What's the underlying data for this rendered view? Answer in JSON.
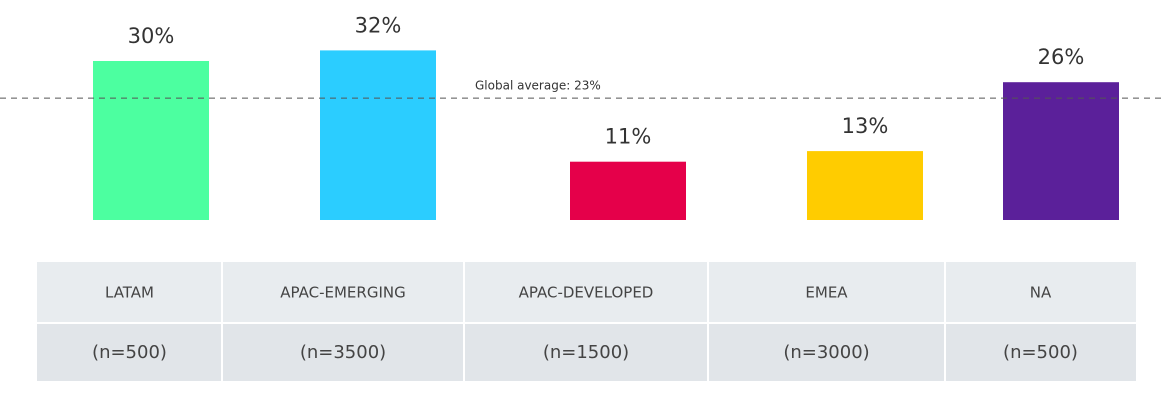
{
  "chart_data": {
    "type": "bar",
    "categories": [
      "LATAM",
      "APAC-EMERGING",
      "APAC-DEVELOPED",
      "EMEA",
      "NA"
    ],
    "values": [
      30,
      32,
      11,
      13,
      26
    ],
    "value_labels": [
      "30%",
      "32%",
      "11%",
      "13%",
      "26%"
    ],
    "colors": [
      "#4cffa0",
      "#2bcdff",
      "#e5004a",
      "#ffcc00",
      "#5b209a"
    ],
    "sample_sizes": [
      "(n=500)",
      "(n=3500)",
      "(n=1500)",
      "(n=3000)",
      "(n=500)"
    ],
    "reference_line": {
      "value": 23,
      "label": "Global average: 23%"
    },
    "ylim": [
      0,
      40
    ]
  }
}
